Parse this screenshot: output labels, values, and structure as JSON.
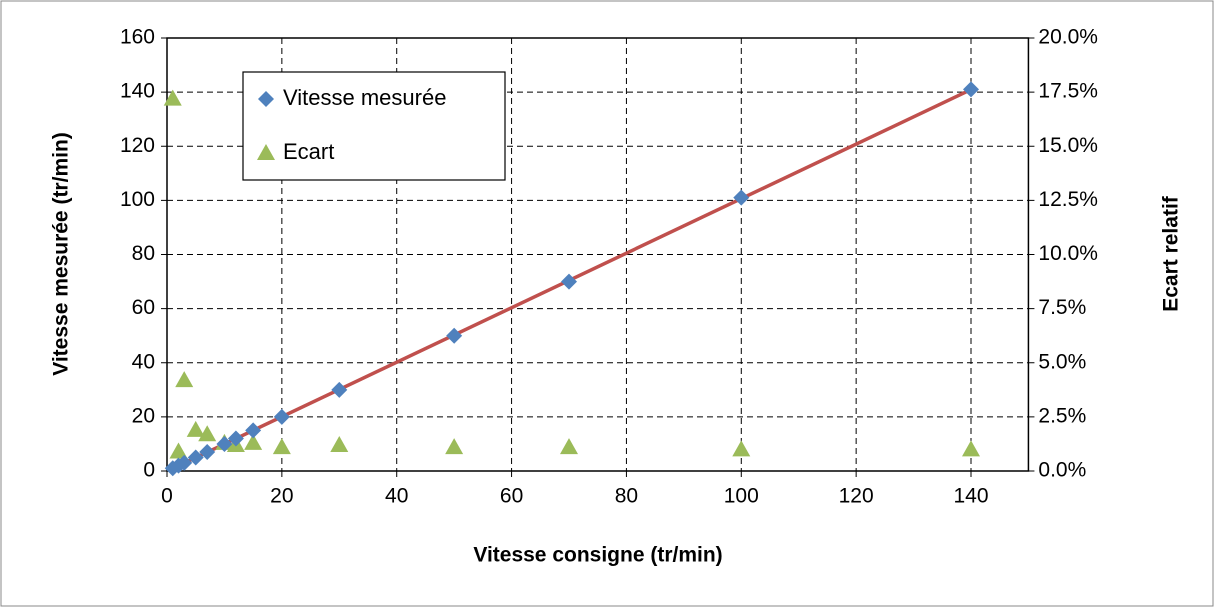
{
  "chart_data": {
    "type": "scatter",
    "xlabel": "Vitesse consigne (tr/min)",
    "ylabel": "Vitesse mesurée (tr/min)",
    "y2label": "Ecart relatif",
    "xlim": [
      0,
      150
    ],
    "xticks": [
      0,
      20,
      40,
      60,
      80,
      100,
      120,
      140
    ],
    "ylim": [
      0,
      160
    ],
    "yticks": [
      0,
      20,
      40,
      60,
      80,
      100,
      120,
      140,
      160
    ],
    "y2lim": [
      0,
      20
    ],
    "y2ticks": [
      {
        "value": 0,
        "label": "0.0%"
      },
      {
        "value": 2.5,
        "label": "2.5%"
      },
      {
        "value": 5,
        "label": "5.0%"
      },
      {
        "value": 7.5,
        "label": "7.5%"
      },
      {
        "value": 10,
        "label": "10.0%"
      },
      {
        "value": 12.5,
        "label": "12.5%"
      },
      {
        "value": 15,
        "label": "15.0%"
      },
      {
        "value": 17.5,
        "label": "17.5%"
      },
      {
        "value": 20,
        "label": "20.0%"
      }
    ],
    "grid": true,
    "trendline_color": "#c0504d",
    "series": [
      {
        "name": "Vitesse mesurée",
        "color": "#4f81bd",
        "marker": "diamond",
        "x": [
          1,
          2,
          3,
          5,
          7,
          10,
          12,
          15,
          20,
          30,
          50,
          70,
          100,
          140
        ],
        "values": [
          1,
          2,
          3,
          5,
          7,
          10,
          12,
          15,
          20,
          30,
          50,
          70,
          101,
          141
        ]
      },
      {
        "name": "Ecart",
        "color": "#9bbb59",
        "marker": "triangle",
        "axis": "y2",
        "x": [
          1,
          2,
          3,
          5,
          7,
          10,
          12,
          15,
          20,
          30,
          50,
          70,
          100,
          140
        ],
        "values": [
          17.2,
          0.9,
          4.2,
          1.9,
          1.7,
          1.3,
          1.2,
          1.3,
          1.1,
          1.2,
          1.1,
          1.1,
          1.0,
          1.0
        ]
      }
    ]
  }
}
